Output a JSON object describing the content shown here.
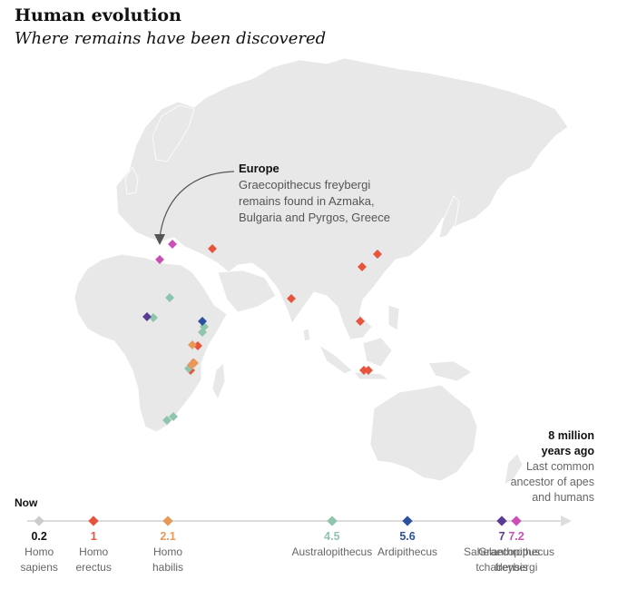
{
  "header": {
    "title": "Human evolution",
    "subtitle": "Where remains have been discovered"
  },
  "annotation": {
    "title": "Europe",
    "lines": [
      "Graecopithecus freybergi",
      "remains found in Azmaka,",
      "Bulgaria and Pyrgos, Greece"
    ]
  },
  "timeline": {
    "now_label": "Now",
    "end_label": "8 million",
    "end_label_2": "years ago",
    "end_note": [
      "Last common",
      "ancestor of apes",
      "and humans"
    ],
    "species": [
      {
        "value": "0.2",
        "name": [
          "Homo",
          "sapiens"
        ],
        "color": "#cccccc",
        "label_color": "#111111"
      },
      {
        "value": "1",
        "name": [
          "Homo",
          "erectus"
        ],
        "color": "#e8533c",
        "label_color": "#e8533c"
      },
      {
        "value": "2.1",
        "name": [
          "Homo",
          "habilis"
        ],
        "color": "#e6995a",
        "label_color": "#e6995a"
      },
      {
        "value": "4.5",
        "name": [
          "Australopithecus"
        ],
        "color": "#8fc4ad",
        "label_color": "#8fc4ad"
      },
      {
        "value": "5.6",
        "name": [
          "Ardipithecus"
        ],
        "color": "#2d4fa0",
        "label_color": "#2d4fa0"
      },
      {
        "value": "7",
        "name": [
          "Sahelanthropus",
          "tchadensis"
        ],
        "color": "#5b3a96",
        "label_color": "#5b3a96"
      },
      {
        "value": "7.2",
        "name": [
          "Graecopithecus",
          "freybergi"
        ],
        "color": "#cc4fb8",
        "label_color": "#cc4fb8"
      }
    ]
  },
  "colors": {
    "land": "#e8e8e8",
    "erectus": "#e8533c",
    "habilis": "#e6995a",
    "australopithecus": "#8fc4ad",
    "ardipithecus": "#2d4fa0",
    "sahelanthropus": "#5b3a96",
    "graecopithecus": "#cc4fb8"
  }
}
